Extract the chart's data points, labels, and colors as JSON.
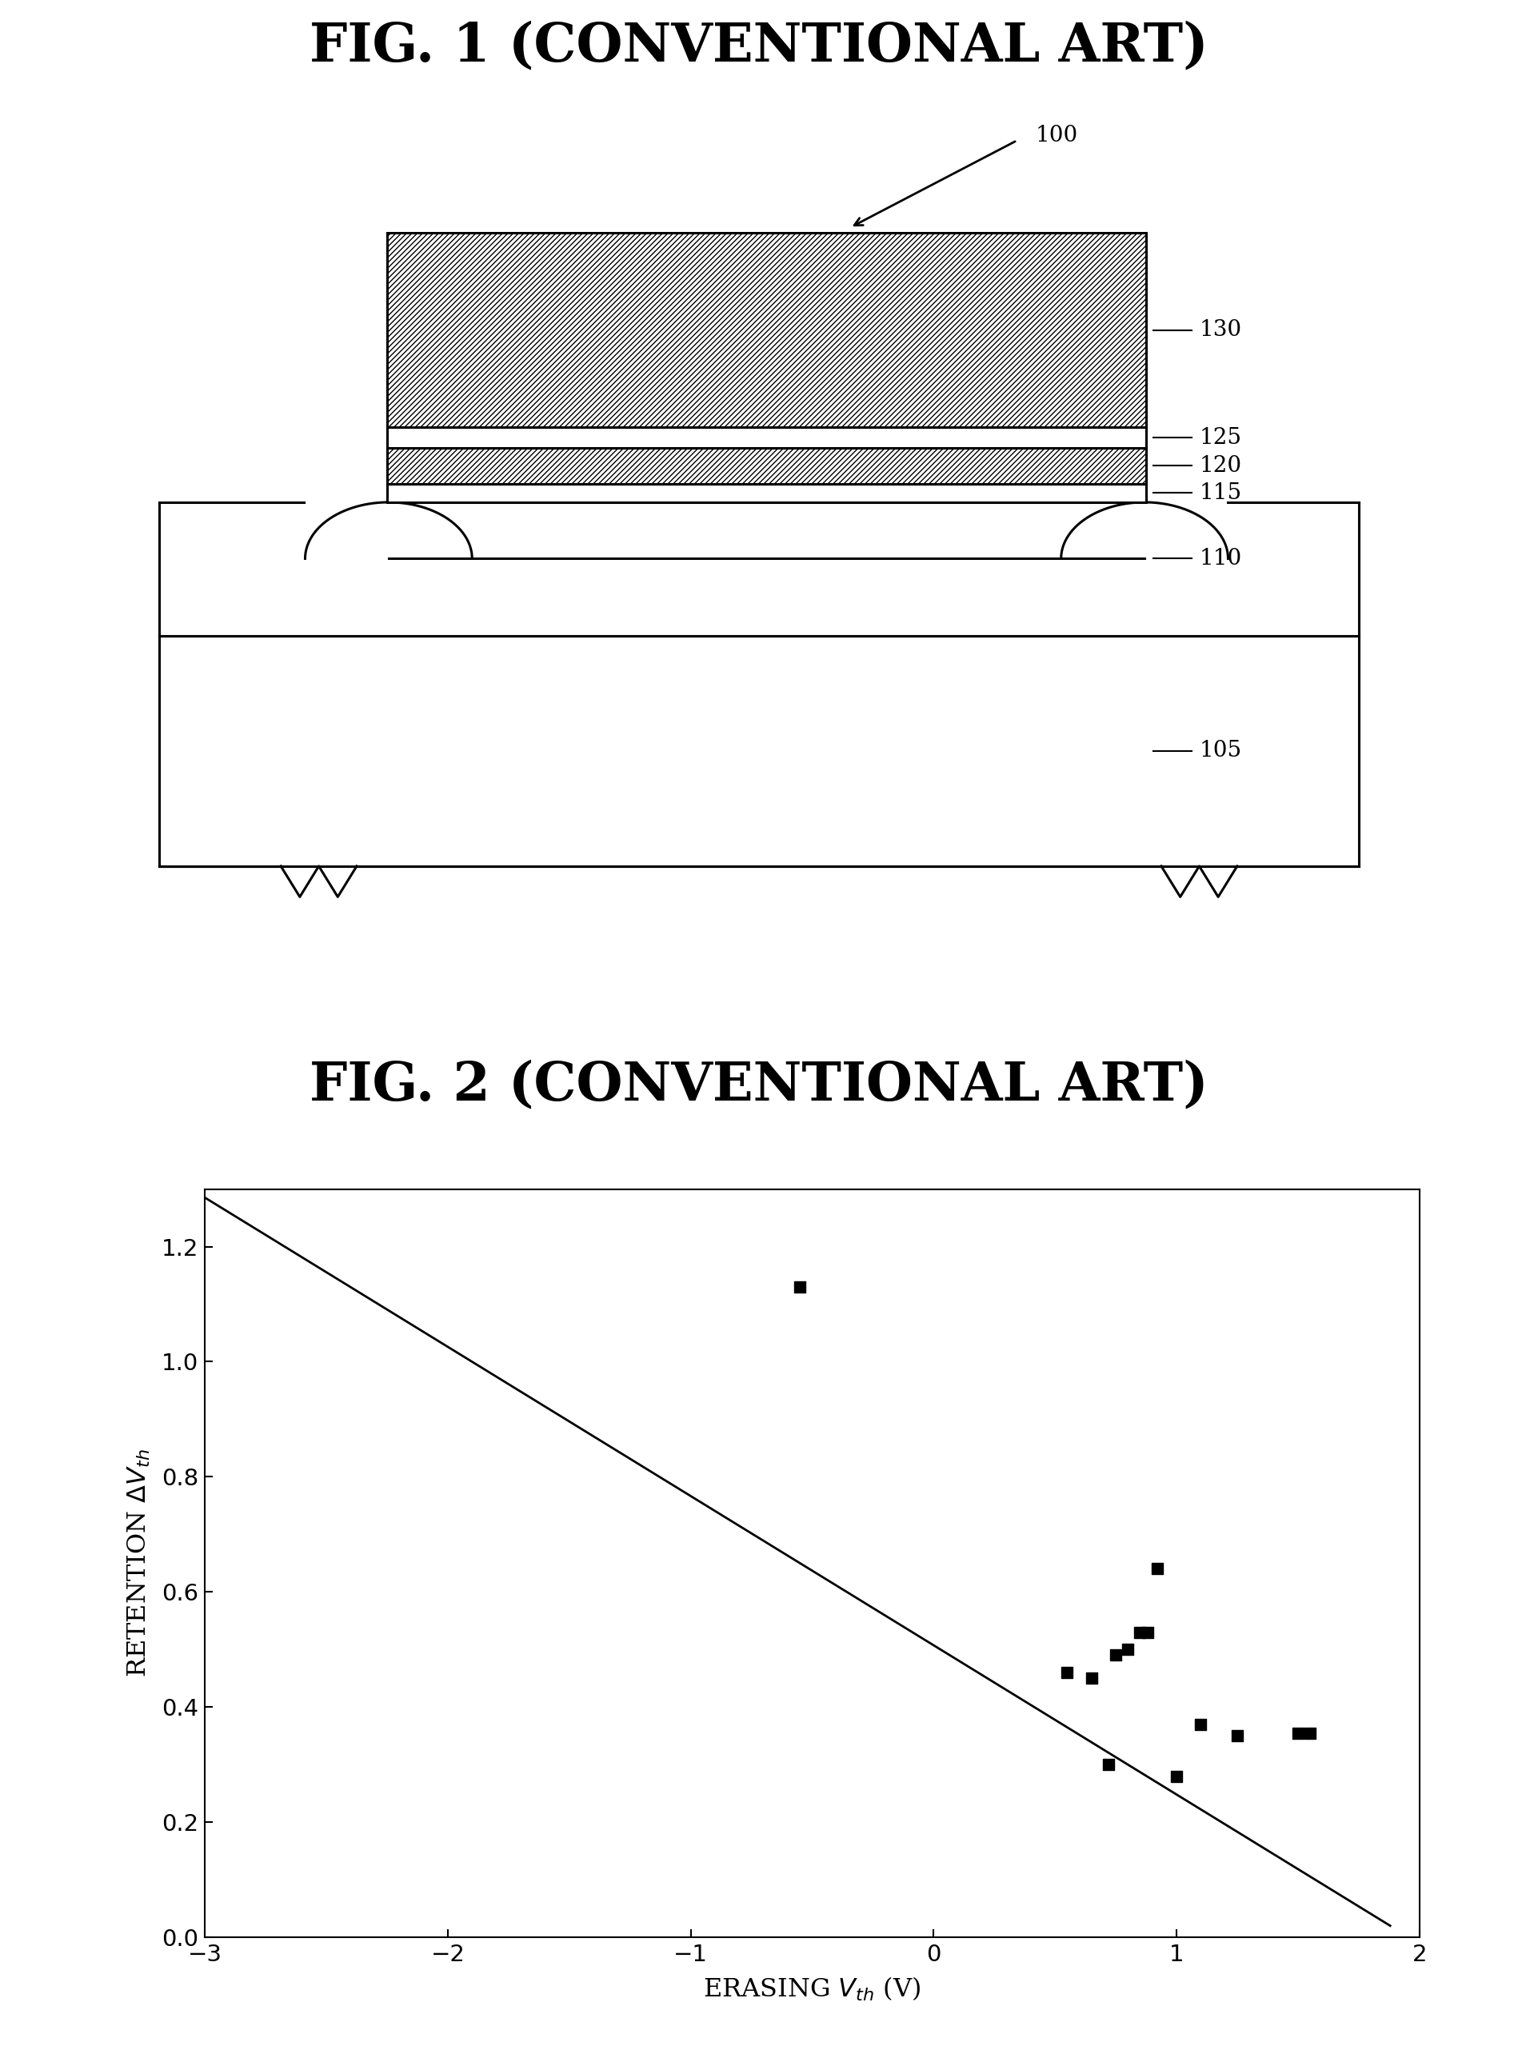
{
  "fig1_title": "FIG. 1 (CONVENTIONAL ART)",
  "fig2_title": "FIG. 2 (CONVENTIONAL ART)",
  "labels": {
    "100": "100",
    "105": "105",
    "110": "110",
    "115": "115",
    "120": "120",
    "125": "125",
    "130": "130"
  },
  "scatter_x": [
    -0.55,
    0.55,
    0.65,
    0.72,
    0.75,
    0.8,
    0.85,
    0.88,
    0.92,
    1.0,
    1.1,
    1.25,
    1.5,
    1.55
  ],
  "scatter_y": [
    1.13,
    0.46,
    0.45,
    0.3,
    0.49,
    0.5,
    0.53,
    0.53,
    0.64,
    0.28,
    0.37,
    0.35,
    0.355,
    0.355
  ],
  "line_x": [
    -3.0,
    1.88
  ],
  "line_y": [
    1.285,
    0.02
  ],
  "xlim": [
    -3,
    2
  ],
  "ylim": [
    0.0,
    1.3
  ],
  "xticks": [
    -3,
    -2,
    -1,
    0,
    1,
    2
  ],
  "yticks": [
    0.0,
    0.2,
    0.4,
    0.6,
    0.8,
    1.0,
    1.2
  ],
  "background": "#ffffff",
  "text_color": "#000000"
}
